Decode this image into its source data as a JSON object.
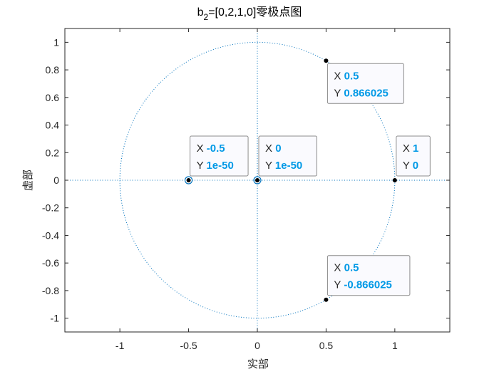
{
  "chart_data": {
    "type": "scatter",
    "title": {
      "main": "b",
      "sub": "2",
      "rest": "=[0,2,1,0]零极点图"
    },
    "xlabel": "实部",
    "ylabel": "虚部",
    "xlim": [
      -1.4,
      1.4
    ],
    "ylim": [
      -1.1,
      1.1
    ],
    "xticks": [
      -1,
      -0.5,
      0,
      0.5,
      1
    ],
    "xtick_labels": [
      "-1",
      "-0.5",
      "0",
      "0.5",
      "1"
    ],
    "yticks": [
      1,
      0.8,
      0.6,
      0.4,
      0.2,
      0,
      -0.2,
      -0.4,
      -0.6,
      -0.8,
      -1
    ],
    "ytick_labels": [
      "1",
      "0.8",
      "0.6",
      "0.4",
      "0.2",
      "0",
      "-0.2",
      "-0.4",
      "-0.6",
      "-0.8",
      "-1"
    ],
    "grid": false,
    "unit_circle": true,
    "series": [
      {
        "marker": "circle",
        "points": [
          {
            "x": -0.5,
            "y": 0
          },
          {
            "x": 0,
            "y": 0
          }
        ]
      },
      {
        "marker": "dot",
        "points": [
          {
            "x": 0.5,
            "y": 0.866025
          },
          {
            "x": 0.5,
            "y": -0.866025
          },
          {
            "x": 1,
            "y": 0
          }
        ]
      }
    ],
    "datatips": [
      {
        "x": 0.5,
        "y": 0.866025,
        "x_text": "0.5",
        "y_text": "0.866025",
        "position": "below-right"
      },
      {
        "x": -0.5,
        "y": 0,
        "x_text": "-0.5",
        "y_text": "1e-50",
        "position": "above-right"
      },
      {
        "x": 0,
        "y": 0,
        "x_text": "0",
        "y_text": "1e-50",
        "position": "above-right"
      },
      {
        "x": 1,
        "y": 0,
        "x_text": "1",
        "y_text": "0",
        "position": "above-right"
      },
      {
        "x": 0.5,
        "y": -0.866025,
        "x_text": "0.5",
        "y_text": "-0.866025",
        "position": "above-right"
      }
    ],
    "datatip_x_prefix": "X",
    "datatip_y_prefix": "Y",
    "colors": {
      "plot_line": "#0072bd",
      "value_text": "#0099e6",
      "axes": "#262626",
      "marker_fill": "#000000"
    }
  }
}
